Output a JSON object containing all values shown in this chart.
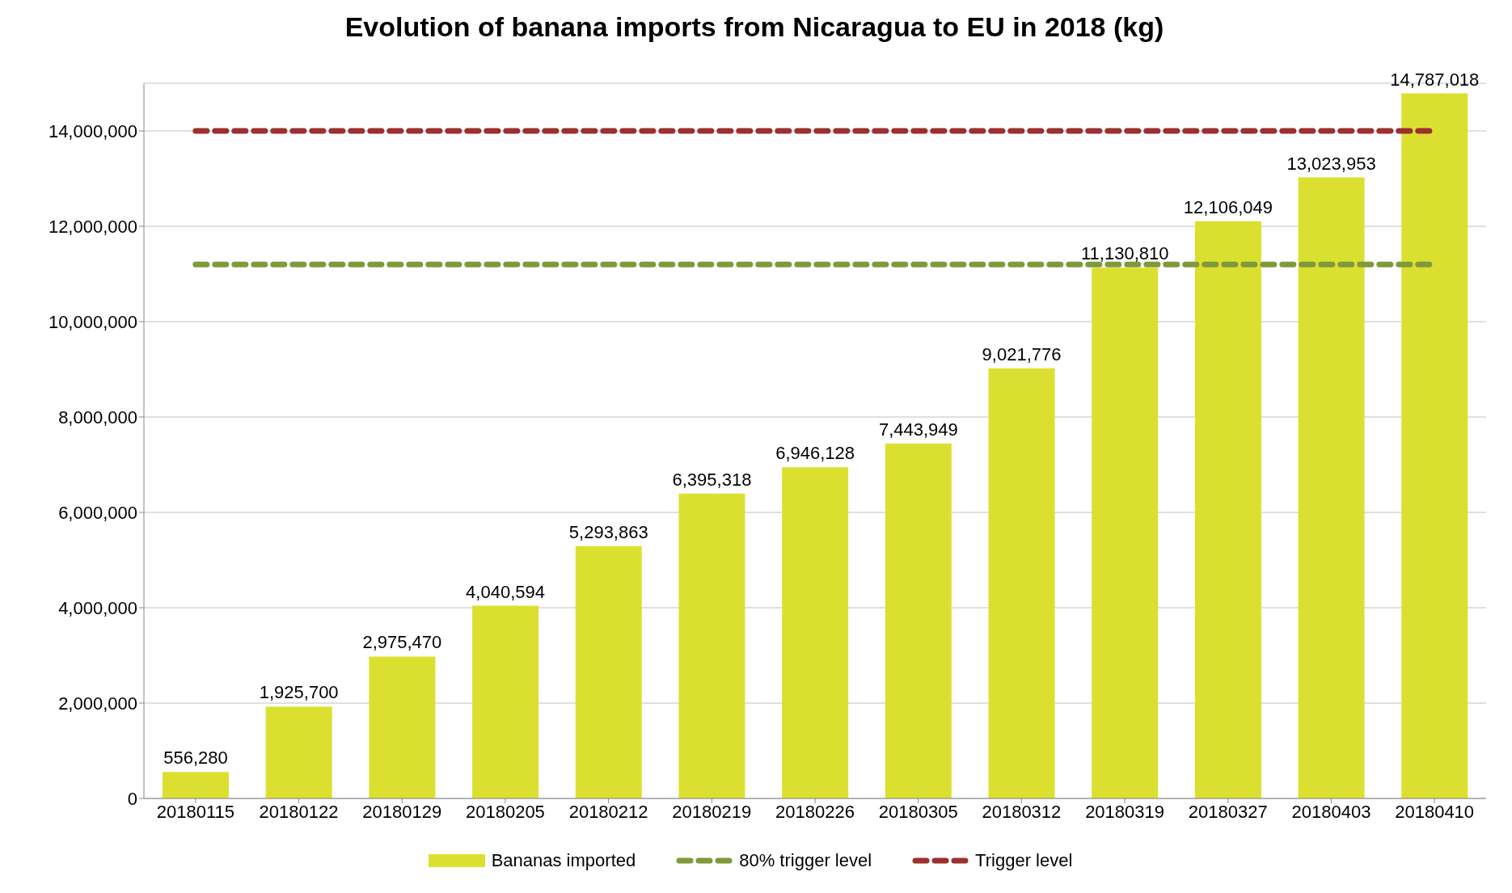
{
  "chart_data": {
    "type": "bar",
    "title": "Evolution of banana imports from Nicaragua to EU in 2018 (kg)",
    "categories": [
      "20180115",
      "20180122",
      "20180129",
      "20180205",
      "20180212",
      "20180219",
      "20180226",
      "20180305",
      "20180312",
      "20180319",
      "20180327",
      "20180403",
      "20180410"
    ],
    "series": [
      {
        "name": "Bananas imported",
        "color": "#dbe030",
        "values": [
          556280,
          1925700,
          2975470,
          4040594,
          5293863,
          6395318,
          6946128,
          7443949,
          9021776,
          11130810,
          12106049,
          13023953,
          14787018
        ],
        "value_labels": [
          "556,280",
          "1,925,700",
          "2,975,470",
          "4,040,594",
          "5,293,863",
          "6,395,318",
          "6,946,128",
          "7,443,949",
          "9,021,776",
          "11,130,810",
          "12,106,049",
          "13,023,953",
          "14,787,018"
        ]
      },
      {
        "name": "80% trigger level",
        "type": "line",
        "color": "#7f9a3a",
        "line_style": "dashed",
        "values": [
          11200000,
          11200000,
          11200000,
          11200000,
          11200000,
          11200000,
          11200000,
          11200000,
          11200000,
          11200000,
          11200000,
          11200000,
          11200000
        ]
      },
      {
        "name": "Trigger level",
        "type": "line",
        "color": "#9b3030",
        "line_style": "dashed",
        "values": [
          14000000,
          14000000,
          14000000,
          14000000,
          14000000,
          14000000,
          14000000,
          14000000,
          14000000,
          14000000,
          14000000,
          14000000,
          14000000
        ]
      }
    ],
    "ylim": [
      0,
      15000000
    ],
    "yticks": [
      0,
      {
        "value": 2000000,
        "label": "2,000,000"
      },
      {
        "value": 4000000,
        "label": "4,000,000"
      },
      {
        "value": 6000000,
        "label": "6,000,000"
      },
      {
        "value": 8000000,
        "label": "8,000,000"
      },
      {
        "value": 10000000,
        "label": "10,000,000"
      },
      {
        "value": 12000000,
        "label": "12,000,000"
      },
      {
        "value": 14000000,
        "label": "14,000,000"
      }
    ],
    "grid": "y",
    "legend": "bottom",
    "marker": "none"
  }
}
